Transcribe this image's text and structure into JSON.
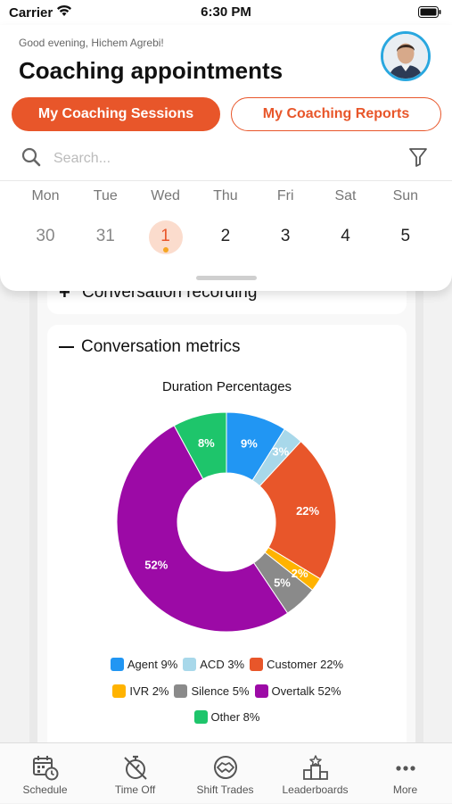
{
  "status_bar": {
    "carrier": "Carrier",
    "time": "6:30 PM"
  },
  "header": {
    "greeting": "Good evening, Hichem Agrebi!",
    "title": "Coaching appointments",
    "tabs": [
      {
        "label": "My Coaching Sessions",
        "active": true
      },
      {
        "label": "My Coaching Reports",
        "active": false
      }
    ]
  },
  "search": {
    "placeholder": "Search...",
    "value": ""
  },
  "calendar": {
    "days": [
      {
        "name": "Mon",
        "num": "30",
        "state": "past"
      },
      {
        "name": "Tue",
        "num": "31",
        "state": "past"
      },
      {
        "name": "Wed",
        "num": "1",
        "state": "today"
      },
      {
        "name": "Thu",
        "num": "2",
        "state": "future"
      },
      {
        "name": "Fri",
        "num": "3",
        "state": "future"
      },
      {
        "name": "Sat",
        "num": "4",
        "state": "future"
      },
      {
        "name": "Sun",
        "num": "5",
        "state": "future"
      }
    ]
  },
  "sections": {
    "recording_label": "Conversation recording",
    "metrics_label": "Conversation metrics"
  },
  "chart_data": {
    "type": "pie",
    "donut": true,
    "title": "Duration Percentages",
    "slices": [
      {
        "label": "Agent 9%",
        "value": 9,
        "display": "9%",
        "color": "#2196f3"
      },
      {
        "label": "ACD 3%",
        "value": 3,
        "display": "3%",
        "color": "#a8d8ea"
      },
      {
        "label": "Customer 22%",
        "value": 22,
        "display": "22%",
        "color": "#e8562a"
      },
      {
        "label": "IVR 2%",
        "value": 2,
        "display": "2%",
        "color": "#ffb300"
      },
      {
        "label": "Silence 5%",
        "value": 5,
        "display": "5%",
        "color": "#8a8a8a"
      },
      {
        "label": "Overtalk 52%",
        "value": 52,
        "display": "52%",
        "color": "#9c0aa6"
      },
      {
        "label": "Other 8%",
        "value": 8,
        "display": "8%",
        "color": "#1ec56b"
      }
    ],
    "legend_placement": "bottom"
  },
  "tab_bar": {
    "items": [
      {
        "label": "Schedule",
        "icon": "calendar-clock-icon"
      },
      {
        "label": "Time Off",
        "icon": "stopwatch-off-icon"
      },
      {
        "label": "Shift Trades",
        "icon": "handshake-icon"
      },
      {
        "label": "Leaderboards",
        "icon": "podium-icon"
      },
      {
        "label": "More",
        "icon": "more-dots-icon"
      }
    ]
  },
  "colors": {
    "accent": "#e8562a",
    "today_bg": "#fbdccd",
    "avatar_ring": "#29a7df"
  }
}
